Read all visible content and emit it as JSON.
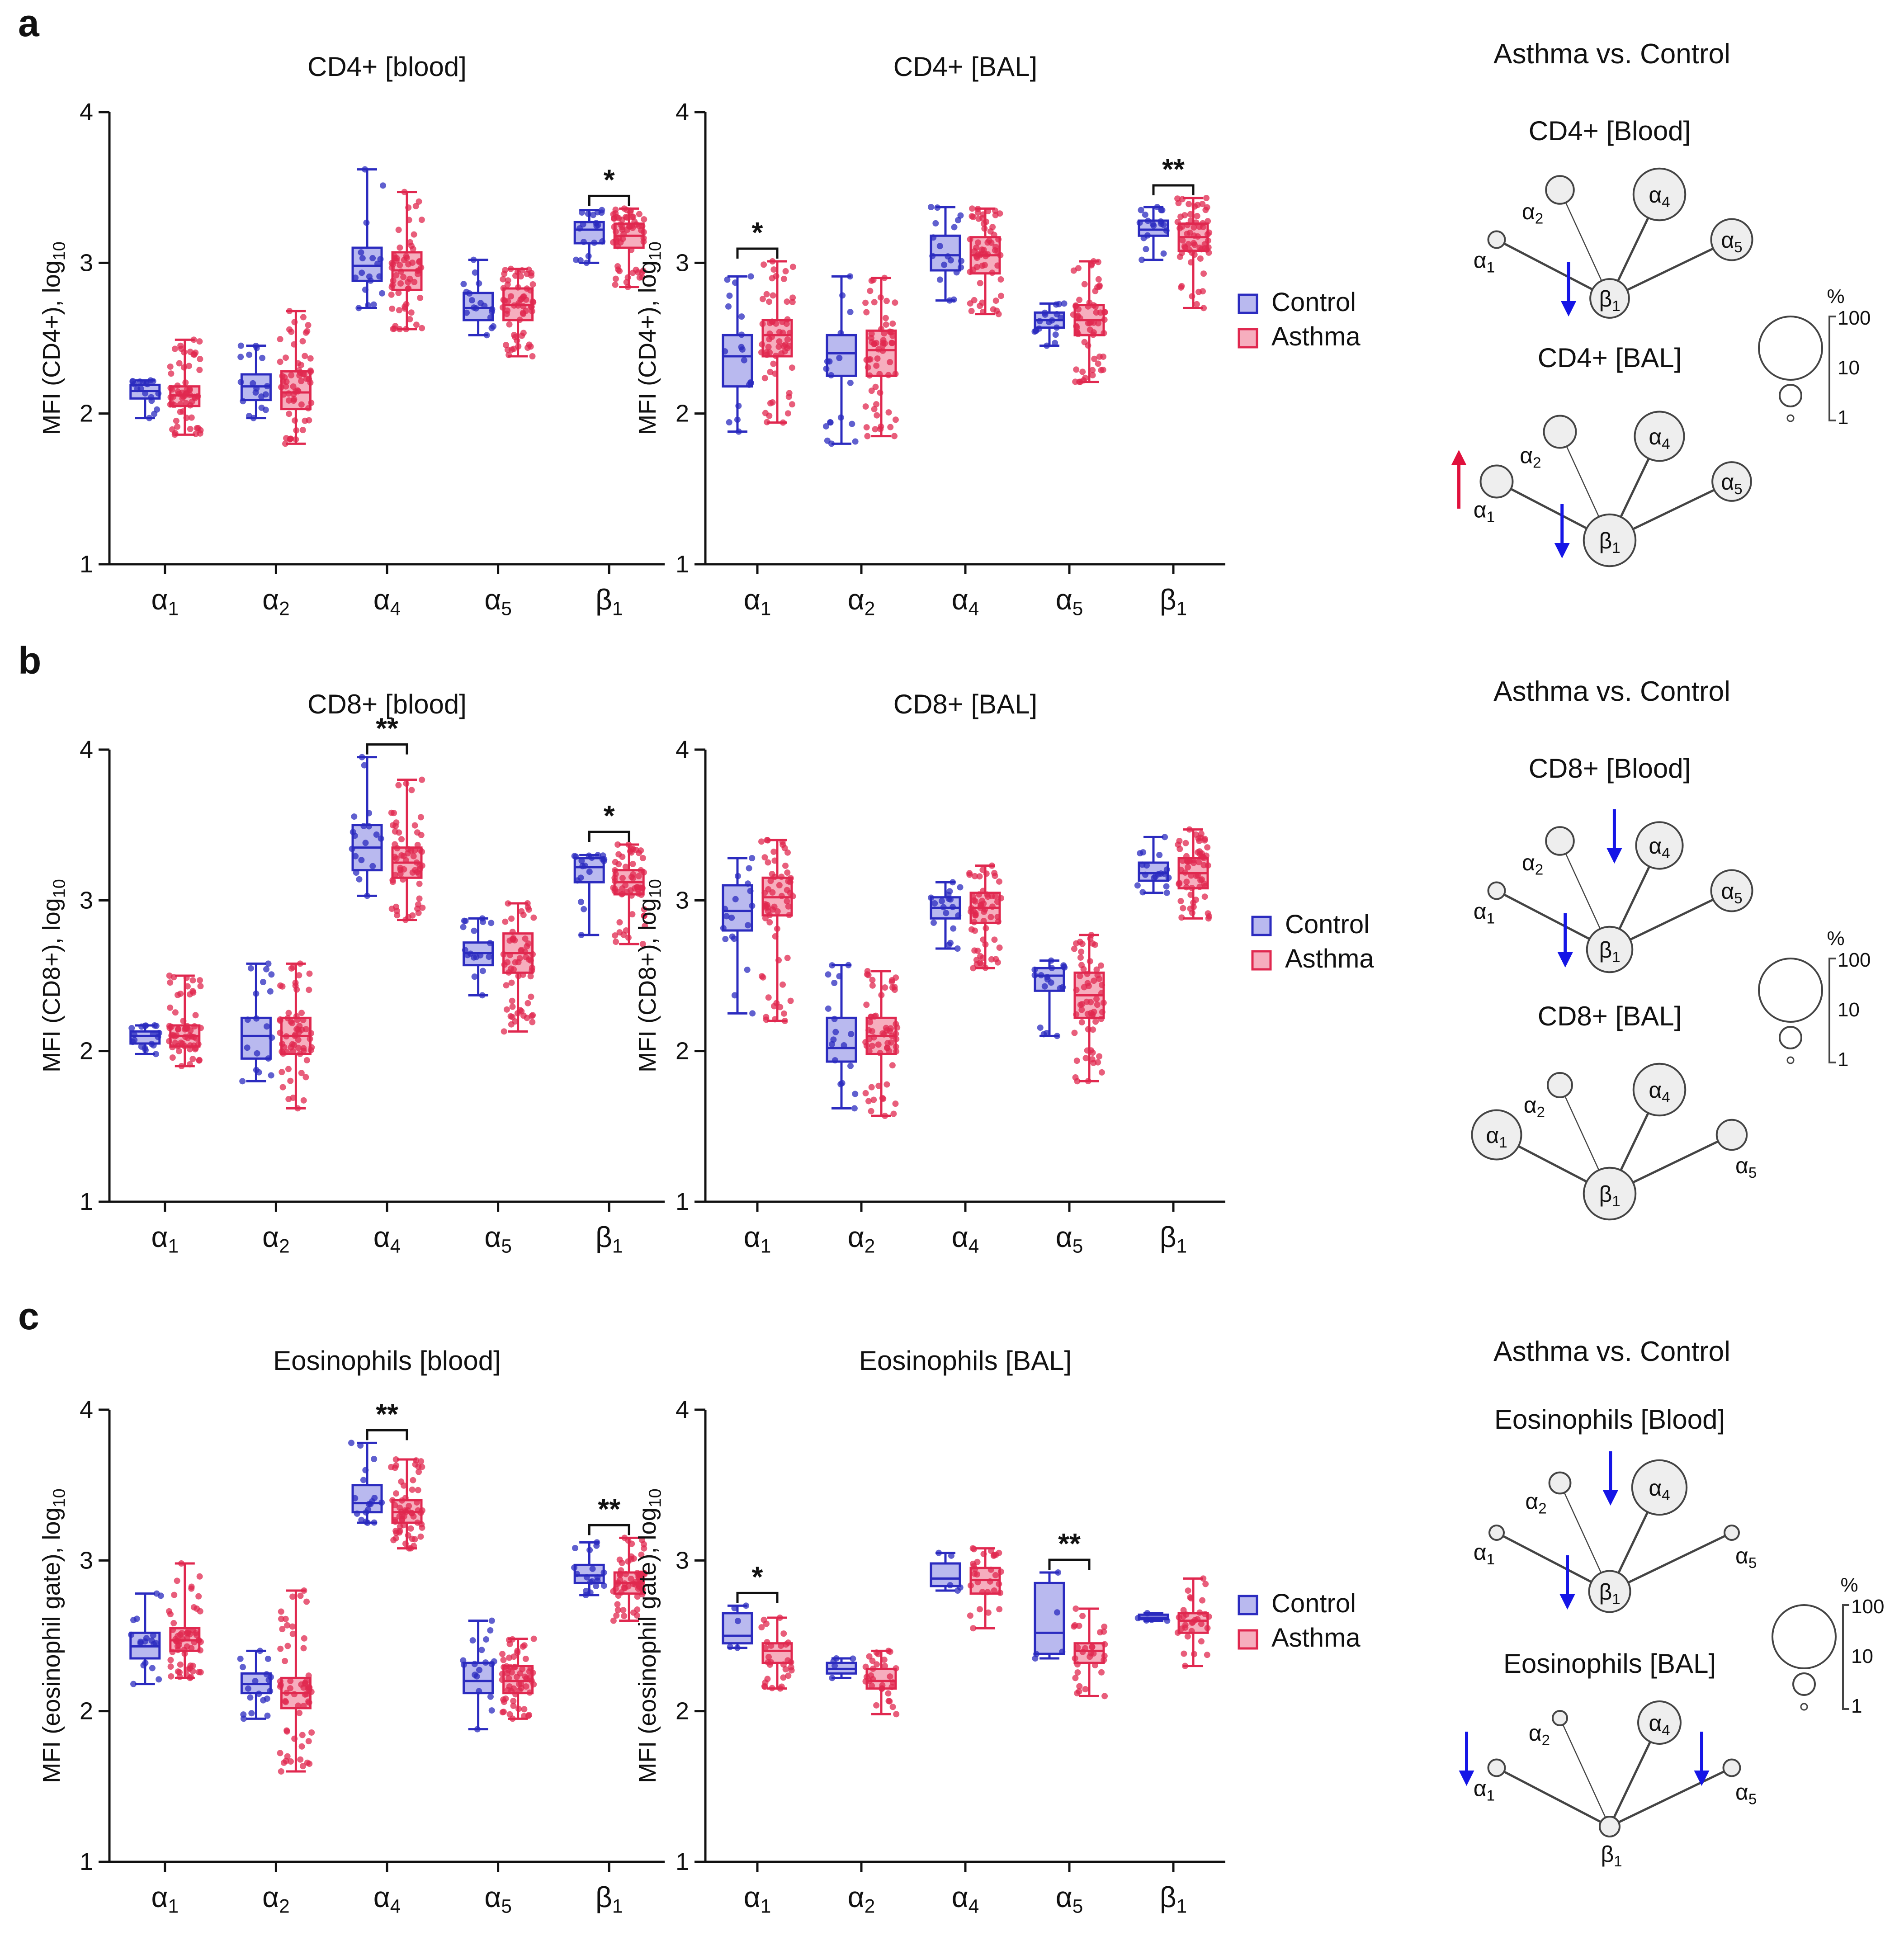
{
  "colors": {
    "control": "#2b2bbf",
    "control_fill": "#b9b9ef",
    "asthma": "#e0284f",
    "asthma_fill": "#f6aebe",
    "axis": "#111111",
    "node_fill": "#eeeeee",
    "arrow_down": "#1515e6",
    "arrow_up": "#e0103c"
  },
  "legend": {
    "control": "Control",
    "asthma": "Asthma"
  },
  "chart_data": [
    {
      "id": "a1",
      "panel": "a",
      "type": "box",
      "title": "CD4+ [blood]",
      "ylabel": "MFI (CD4+), log",
      "ylabel_sub": "10",
      "ylim": [
        1,
        4
      ],
      "yticks": [
        "1",
        "2",
        "3",
        "4"
      ],
      "categories": [
        [
          "α",
          "1"
        ],
        [
          "α",
          "2"
        ],
        [
          "α",
          "4"
        ],
        [
          "α",
          "5"
        ],
        [
          "β",
          "1"
        ]
      ],
      "series": [
        {
          "name": "Control",
          "boxes": [
            [
              1.97,
              2.1,
              2.15,
              2.19,
              2.22
            ],
            [
              1.97,
              2.09,
              2.18,
              2.26,
              2.45
            ],
            [
              2.7,
              2.88,
              2.98,
              3.1,
              3.62
            ],
            [
              2.52,
              2.62,
              2.7,
              2.8,
              3.02
            ],
            [
              3.0,
              3.13,
              3.22,
              3.27,
              3.35
            ]
          ],
          "n": 18
        },
        {
          "name": "Asthma",
          "boxes": [
            [
              1.86,
              2.05,
              2.12,
              2.18,
              2.49
            ],
            [
              1.8,
              2.03,
              2.14,
              2.28,
              2.68
            ],
            [
              2.56,
              2.82,
              2.95,
              3.07,
              3.47
            ],
            [
              2.38,
              2.62,
              2.72,
              2.83,
              2.96
            ],
            [
              2.84,
              3.1,
              3.18,
              3.26,
              3.36
            ]
          ],
          "n": 60
        }
      ],
      "significance": [
        {
          "category": 4,
          "label": "*"
        }
      ]
    },
    {
      "id": "a2",
      "panel": "a",
      "type": "box",
      "title": "CD4+ [BAL]",
      "ylabel": "MFI (CD4+), log",
      "ylabel_sub": "10",
      "ylim": [
        1,
        4
      ],
      "yticks": [
        "1",
        "2",
        "3",
        "4"
      ],
      "categories": [
        [
          "α",
          "1"
        ],
        [
          "α",
          "2"
        ],
        [
          "α",
          "4"
        ],
        [
          "α",
          "5"
        ],
        [
          "β",
          "1"
        ]
      ],
      "series": [
        {
          "name": "Control",
          "boxes": [
            [
              1.88,
              2.18,
              2.38,
              2.52,
              2.91
            ],
            [
              1.8,
              2.25,
              2.4,
              2.52,
              2.91
            ],
            [
              2.75,
              2.95,
              3.05,
              3.18,
              3.37
            ],
            [
              2.45,
              2.57,
              2.62,
              2.67,
              2.73
            ],
            [
              3.02,
              3.18,
              3.22,
              3.28,
              3.37
            ]
          ],
          "n": 18
        },
        {
          "name": "Asthma",
          "boxes": [
            [
              1.94,
              2.38,
              2.52,
              2.62,
              3.01
            ],
            [
              1.85,
              2.25,
              2.42,
              2.55,
              2.9
            ],
            [
              2.66,
              2.93,
              3.05,
              3.17,
              3.36
            ],
            [
              2.21,
              2.52,
              2.62,
              2.72,
              3.01
            ],
            [
              2.7,
              3.08,
              3.17,
              3.26,
              3.43
            ]
          ],
          "n": 60
        }
      ],
      "significance": [
        {
          "category": 0,
          "label": "*"
        },
        {
          "category": 4,
          "label": "**"
        }
      ]
    },
    {
      "id": "b1",
      "panel": "b",
      "type": "box",
      "title": "CD8+ [blood]",
      "ylabel": "MFI (CD8+), log",
      "ylabel_sub": "10",
      "ylim": [
        1,
        4
      ],
      "yticks": [
        "1",
        "2",
        "3",
        "4"
      ],
      "categories": [
        [
          "α",
          "1"
        ],
        [
          "α",
          "2"
        ],
        [
          "α",
          "4"
        ],
        [
          "α",
          "5"
        ],
        [
          "β",
          "1"
        ]
      ],
      "series": [
        {
          "name": "Control",
          "boxes": [
            [
              1.98,
              2.05,
              2.1,
              2.13,
              2.17
            ],
            [
              1.8,
              1.95,
              2.1,
              2.22,
              2.58
            ],
            [
              3.03,
              3.2,
              3.35,
              3.5,
              3.95
            ],
            [
              2.37,
              2.57,
              2.65,
              2.72,
              2.88
            ],
            [
              2.77,
              3.12,
              3.22,
              3.28,
              3.3
            ]
          ],
          "n": 18
        },
        {
          "name": "Asthma",
          "boxes": [
            [
              1.9,
              2.03,
              2.1,
              2.17,
              2.5
            ],
            [
              1.62,
              1.98,
              2.1,
              2.22,
              2.58
            ],
            [
              2.87,
              3.15,
              3.25,
              3.35,
              3.8
            ],
            [
              2.13,
              2.52,
              2.65,
              2.78,
              2.98
            ],
            [
              2.71,
              3.04,
              3.12,
              3.2,
              3.37
            ]
          ],
          "n": 60
        }
      ],
      "significance": [
        {
          "category": 2,
          "label": "**"
        },
        {
          "category": 4,
          "label": "*"
        }
      ]
    },
    {
      "id": "b2",
      "panel": "b",
      "type": "box",
      "title": "CD8+ [BAL]",
      "ylabel": "MFI (CD8+), log",
      "ylabel_sub": "10",
      "ylim": [
        1,
        4
      ],
      "yticks": [
        "1",
        "2",
        "3",
        "4"
      ],
      "categories": [
        [
          "α",
          "1"
        ],
        [
          "α",
          "2"
        ],
        [
          "α",
          "4"
        ],
        [
          "α",
          "5"
        ],
        [
          "β",
          "1"
        ]
      ],
      "series": [
        {
          "name": "Control",
          "boxes": [
            [
              2.25,
              2.8,
              2.93,
              3.1,
              3.28
            ],
            [
              1.62,
              1.93,
              2.02,
              2.22,
              2.57
            ],
            [
              2.68,
              2.88,
              2.95,
              3.02,
              3.12
            ],
            [
              2.1,
              2.4,
              2.5,
              2.55,
              2.6
            ],
            [
              3.05,
              3.13,
              3.18,
              3.25,
              3.42
            ]
          ],
          "n": 18
        },
        {
          "name": "Asthma",
          "boxes": [
            [
              2.2,
              2.9,
              3.02,
              3.15,
              3.4
            ],
            [
              1.57,
              1.98,
              2.1,
              2.22,
              2.53
            ],
            [
              2.55,
              2.85,
              2.95,
              3.05,
              3.23
            ],
            [
              1.8,
              2.22,
              2.37,
              2.52,
              2.77
            ],
            [
              2.88,
              3.08,
              3.18,
              3.28,
              3.47
            ]
          ],
          "n": 60
        }
      ],
      "significance": []
    },
    {
      "id": "c1",
      "panel": "c",
      "type": "box",
      "title": "Eosinophils [blood]",
      "ylabel": "MFI (eosinophil gate), log",
      "ylabel_sub": "10",
      "ylim": [
        1,
        4
      ],
      "yticks": [
        "1",
        "2",
        "3",
        "4"
      ],
      "categories": [
        [
          "α",
          "1"
        ],
        [
          "α",
          "2"
        ],
        [
          "α",
          "4"
        ],
        [
          "α",
          "5"
        ],
        [
          "β",
          "1"
        ]
      ],
      "series": [
        {
          "name": "Control",
          "boxes": [
            [
              2.18,
              2.35,
              2.43,
              2.52,
              2.78
            ],
            [
              1.95,
              2.12,
              2.18,
              2.25,
              2.4
            ],
            [
              3.25,
              3.32,
              3.38,
              3.5,
              3.78
            ],
            [
              1.88,
              2.12,
              2.2,
              2.32,
              2.6
            ],
            [
              2.77,
              2.85,
              2.9,
              2.97,
              3.12
            ]
          ],
          "n": 18
        },
        {
          "name": "Asthma",
          "boxes": [
            [
              2.22,
              2.4,
              2.47,
              2.55,
              2.98
            ],
            [
              1.6,
              2.02,
              2.12,
              2.22,
              2.8
            ],
            [
              3.08,
              3.25,
              3.32,
              3.4,
              3.67
            ],
            [
              1.95,
              2.12,
              2.2,
              2.3,
              2.48
            ],
            [
              2.6,
              2.78,
              2.85,
              2.92,
              3.15
            ]
          ],
          "n": 60
        }
      ],
      "significance": [
        {
          "category": 2,
          "label": "**"
        },
        {
          "category": 4,
          "label": "**"
        }
      ]
    },
    {
      "id": "c2",
      "panel": "c",
      "type": "box",
      "title": "Eosinophils [BAL]",
      "ylabel": "MFI (eosinophil gate), log",
      "ylabel_sub": "10",
      "ylim": [
        1,
        4
      ],
      "yticks": [
        "1",
        "2",
        "3",
        "4"
      ],
      "categories": [
        [
          "α",
          "1"
        ],
        [
          "α",
          "2"
        ],
        [
          "α",
          "4"
        ],
        [
          "α",
          "5"
        ],
        [
          "β",
          "1"
        ]
      ],
      "series": [
        {
          "name": "Control",
          "boxes": [
            [
              2.42,
              2.45,
              2.5,
              2.65,
              2.7
            ],
            [
              2.22,
              2.25,
              2.28,
              2.32,
              2.35
            ],
            [
              2.8,
              2.83,
              2.88,
              2.98,
              3.05
            ],
            [
              2.35,
              2.38,
              2.52,
              2.85,
              2.92
            ],
            [
              2.6,
              2.61,
              2.62,
              2.64,
              2.65
            ]
          ],
          "n": 5
        },
        {
          "name": "Asthma",
          "boxes": [
            [
              2.15,
              2.32,
              2.4,
              2.45,
              2.62
            ],
            [
              1.98,
              2.15,
              2.2,
              2.28,
              2.4
            ],
            [
              2.55,
              2.78,
              2.87,
              2.95,
              3.08
            ],
            [
              2.1,
              2.32,
              2.4,
              2.45,
              2.68
            ],
            [
              2.3,
              2.52,
              2.6,
              2.65,
              2.88
            ]
          ],
          "n": 30
        }
      ],
      "significance": [
        {
          "category": 0,
          "label": "*"
        },
        {
          "category": 3,
          "label": "**"
        }
      ]
    }
  ],
  "diagrams": {
    "a": {
      "title": "Asthma vs. Control",
      "subs": [
        {
          "label": "CD4+ [Blood]",
          "nodes": [
            {
              "id": "a1",
              "g": "α",
              "s": "1",
              "pct": 2,
              "arrow": ""
            },
            {
              "id": "a2",
              "g": "α",
              "s": "2",
              "pct": 12,
              "arrow": ""
            },
            {
              "id": "a4",
              "g": "α",
              "s": "4",
              "pct": 62,
              "arrow": ""
            },
            {
              "id": "a5",
              "g": "α",
              "s": "5",
              "pct": 35,
              "arrow": ""
            },
            {
              "id": "b1",
              "g": "β",
              "s": "1",
              "pct": 30,
              "arrow": "down"
            }
          ]
        },
        {
          "label": "CD4+ [BAL]",
          "nodes": [
            {
              "id": "a1",
              "g": "α",
              "s": "1",
              "pct": 18,
              "arrow": "up"
            },
            {
              "id": "a2",
              "g": "α",
              "s": "2",
              "pct": 18,
              "arrow": ""
            },
            {
              "id": "a4",
              "g": "α",
              "s": "4",
              "pct": 55,
              "arrow": ""
            },
            {
              "id": "a5",
              "g": "α",
              "s": "5",
              "pct": 30,
              "arrow": ""
            },
            {
              "id": "b1",
              "g": "β",
              "s": "1",
              "pct": 62,
              "arrow": "down"
            }
          ]
        }
      ],
      "scale": {
        "unit": "%",
        "labels": [
          "100",
          "10",
          "1"
        ]
      }
    },
    "b": {
      "title": "Asthma vs. Control",
      "subs": [
        {
          "label": "CD8+ [Blood]",
          "nodes": [
            {
              "id": "a1",
              "g": "α",
              "s": "1",
              "pct": 2,
              "arrow": ""
            },
            {
              "id": "a2",
              "g": "α",
              "s": "2",
              "pct": 12,
              "arrow": ""
            },
            {
              "id": "a4",
              "g": "α",
              "s": "4",
              "pct": 48,
              "arrow": "down"
            },
            {
              "id": "a5",
              "g": "α",
              "s": "5",
              "pct": 35,
              "arrow": ""
            },
            {
              "id": "b1",
              "g": "β",
              "s": "1",
              "pct": 45,
              "arrow": "down"
            }
          ]
        },
        {
          "label": "CD8+ [BAL]",
          "nodes": [
            {
              "id": "a1",
              "g": "α",
              "s": "1",
              "pct": 55,
              "arrow": ""
            },
            {
              "id": "a2",
              "g": "α",
              "s": "2",
              "pct": 8,
              "arrow": ""
            },
            {
              "id": "a4",
              "g": "α",
              "s": "4",
              "pct": 62,
              "arrow": ""
            },
            {
              "id": "a5",
              "g": "α",
              "s": "5",
              "pct": 15,
              "arrow": ""
            },
            {
              "id": "b1",
              "g": "β",
              "s": "1",
              "pct": 62,
              "arrow": ""
            }
          ]
        }
      ],
      "scale": {
        "unit": "%",
        "labels": [
          "100",
          "10",
          "1"
        ]
      }
    },
    "c": {
      "title": "Asthma vs. Control",
      "subs": [
        {
          "label": "Eosinophils [Blood]",
          "nodes": [
            {
              "id": "a1",
              "g": "α",
              "s": "1",
              "pct": 1,
              "arrow": ""
            },
            {
              "id": "a2",
              "g": "α",
              "s": "2",
              "pct": 5,
              "arrow": ""
            },
            {
              "id": "a4",
              "g": "α",
              "s": "4",
              "pct": 70,
              "arrow": "down"
            },
            {
              "id": "a5",
              "g": "α",
              "s": "5",
              "pct": 1,
              "arrow": ""
            },
            {
              "id": "b1",
              "g": "β",
              "s": "1",
              "pct": 35,
              "arrow": "down"
            }
          ]
        },
        {
          "label": "Eosinophils [BAL]",
          "nodes": [
            {
              "id": "a1",
              "g": "α",
              "s": "1",
              "pct": 2,
              "arrow": "down"
            },
            {
              "id": "a2",
              "g": "α",
              "s": "2",
              "pct": 1,
              "arrow": ""
            },
            {
              "id": "a4",
              "g": "α",
              "s": "4",
              "pct": 38,
              "arrow": ""
            },
            {
              "id": "a5",
              "g": "α",
              "s": "5",
              "pct": 2,
              "arrow": "down"
            },
            {
              "id": "b1",
              "g": "β",
              "s": "1",
              "pct": 4,
              "arrow": ""
            }
          ]
        }
      ],
      "scale": {
        "unit": "%",
        "labels": [
          "100",
          "10",
          "1"
        ]
      }
    }
  }
}
